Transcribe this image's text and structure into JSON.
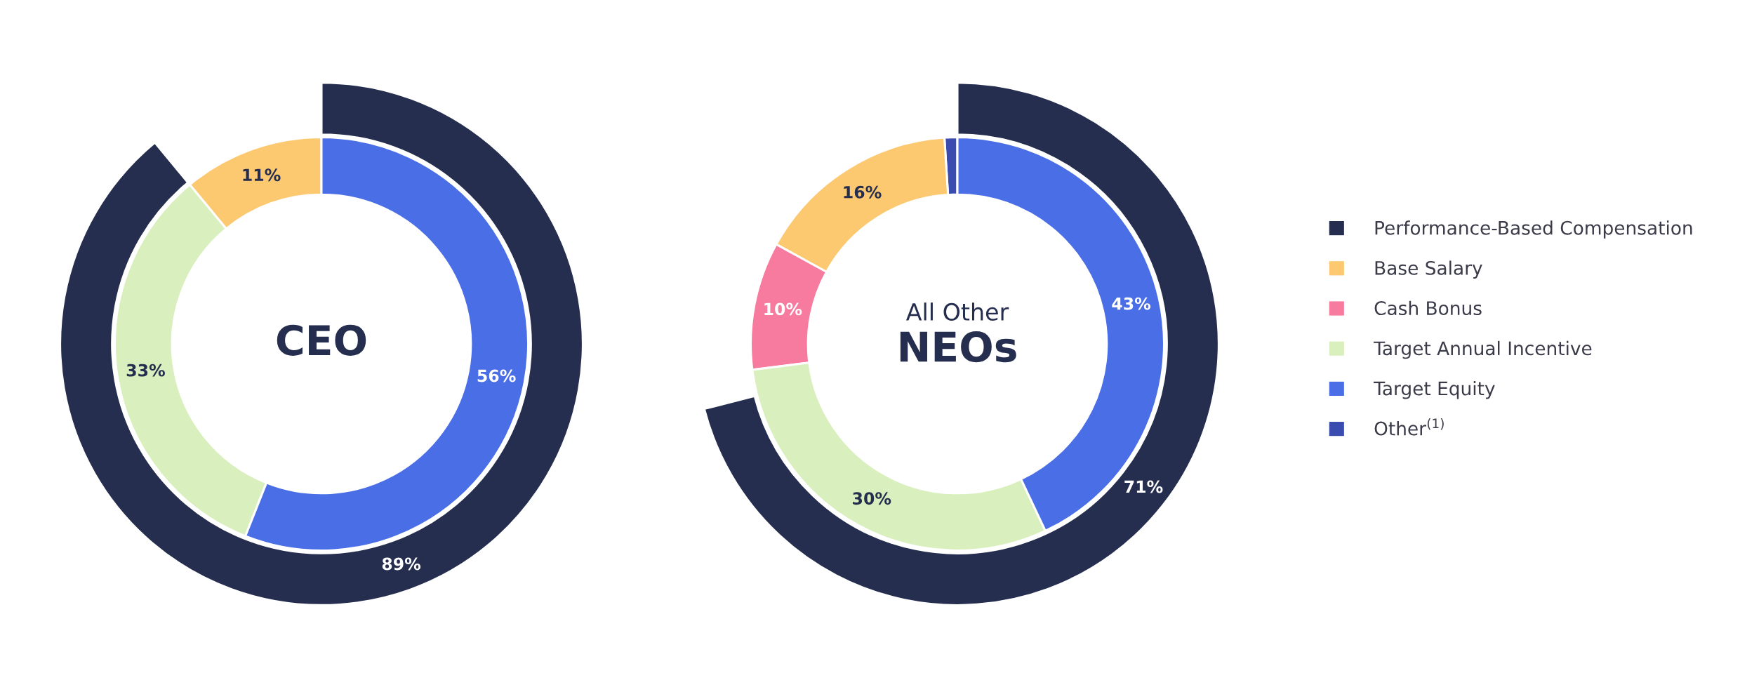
{
  "chart_data": [
    {
      "type": "donut",
      "title": "CEO",
      "categories": [
        null,
        null,
        null,
        null,
        null,
        null
      ],
      "colors": [
        "#252e4e",
        "#fcc870",
        "#f77b9f",
        "#d9f0be",
        "#4a6ee6",
        "#3b4cb0"
      ],
      "series": [
        {
          "values": [
            89,
            null,
            null,
            null,
            null,
            null
          ],
          "value_labels": [
            "89%",
            null,
            null,
            null,
            null,
            null
          ]
        },
        {
          "values": [
            null,
            11,
            null,
            33,
            56,
            null
          ],
          "value_labels": [
            null,
            "11%",
            null,
            "33%",
            "56%",
            null
          ]
        }
      ]
    },
    {
      "type": "donut",
      "title": "NEOs",
      "subtitle": "All Other",
      "categories": [
        "Performance-Based Compensation",
        "Base Salary",
        "Cash Bonus",
        "Target Annual Incentive",
        "Target Equity",
        "Other$^{(1)}$"
      ],
      "colors": [
        "#252e4e",
        "#fcc870",
        "#f77b9f",
        "#d9f0be",
        "#4a6ee6",
        "#3b4cb0"
      ],
      "legend": "right",
      "series": [
        {
          "values": [
            71,
            null,
            null,
            null,
            null,
            null
          ],
          "value_labels": [
            "71%",
            null,
            null,
            null,
            null,
            null
          ]
        },
        {
          "values": [
            null,
            16,
            10,
            30,
            43,
            1
          ],
          "value_labels": [
            null,
            "16%",
            "10%",
            "30%",
            "43%",
            null
          ]
        }
      ]
    }
  ]
}
